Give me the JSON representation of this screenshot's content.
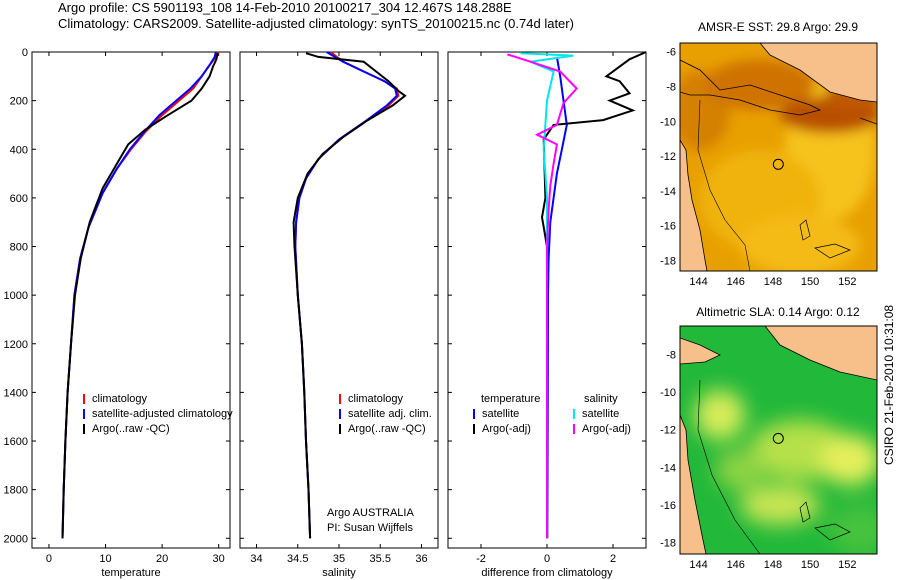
{
  "header": {
    "line1": "Argo profile: CS 5901193_108 14-Feb-2010 20100217_304 12.467S 148.288E",
    "line2": "Climatology: CARS2009. Satellite-adjusted climatology: synTS_20100215.nc (0.74d later)"
  },
  "credit": "CSIRO 21-Feb-2010 10:31:08",
  "colors": {
    "climatology": "#ff0000",
    "satellite": "#0000ff",
    "argo": "#000000",
    "salinity_sat": "#00e5ee",
    "salinity_argo": "#ff00ff"
  },
  "chart_data": [
    {
      "type": "line",
      "name": "temperature",
      "xlabel": "temperature",
      "ylabel": "",
      "xlim": [
        -3,
        32
      ],
      "ylim": [
        2040,
        0
      ],
      "xticks": [
        0,
        10,
        20,
        30
      ],
      "yticks": [
        0,
        200,
        400,
        600,
        800,
        1000,
        1200,
        1400,
        1600,
        1800,
        2000
      ],
      "legend": [
        "climatology",
        "satellite-adjusted climatology",
        "Argo(..raw -QC)"
      ],
      "series": [
        {
          "name": "climatology",
          "color": "#ff0000",
          "points": [
            [
              30,
              0
            ],
            [
              29.5,
              20
            ],
            [
              28.5,
              50
            ],
            [
              27,
              100
            ],
            [
              25.5,
              150
            ],
            [
              23,
              200
            ],
            [
              20,
              260
            ],
            [
              17,
              330
            ],
            [
              14.5,
              400
            ],
            [
              12,
              480
            ],
            [
              9.5,
              580
            ],
            [
              7,
              720
            ],
            [
              5.5,
              850
            ],
            [
              4.5,
              1000
            ],
            [
              3.9,
              1200
            ],
            [
              3.3,
              1400
            ],
            [
              2.9,
              1600
            ],
            [
              2.6,
              1800
            ],
            [
              2.4,
              2000
            ]
          ]
        },
        {
          "name": "satellite-adjusted climatology",
          "color": "#0000ff",
          "points": [
            [
              29.5,
              0
            ],
            [
              29.3,
              20
            ],
            [
              28.5,
              50
            ],
            [
              27,
              100
            ],
            [
              25,
              150
            ],
            [
              22.5,
              200
            ],
            [
              19.5,
              260
            ],
            [
              16.8,
              330
            ],
            [
              14.3,
              400
            ],
            [
              12,
              480
            ],
            [
              9.5,
              580
            ],
            [
              7,
              720
            ],
            [
              5.5,
              850
            ],
            [
              4.5,
              1000
            ],
            [
              3.9,
              1200
            ],
            [
              3.3,
              1400
            ],
            [
              2.9,
              1600
            ],
            [
              2.6,
              1800
            ],
            [
              2.4,
              2000
            ]
          ]
        },
        {
          "name": "Argo(..raw -QC)",
          "color": "#000000",
          "points": [
            [
              29.8,
              5
            ],
            [
              29.6,
              30
            ],
            [
              29,
              60
            ],
            [
              28.4,
              100
            ],
            [
              27,
              150
            ],
            [
              25.2,
              200
            ],
            [
              21,
              260
            ],
            [
              17,
              320
            ],
            [
              14,
              380
            ],
            [
              12,
              460
            ],
            [
              9.5,
              560
            ],
            [
              7.2,
              700
            ],
            [
              5.6,
              850
            ],
            [
              4.6,
              1000
            ],
            [
              3.9,
              1200
            ],
            [
              3.3,
              1400
            ],
            [
              2.9,
              1600
            ],
            [
              2.6,
              1800
            ],
            [
              2.4,
              2000
            ]
          ]
        }
      ]
    },
    {
      "type": "line",
      "name": "salinity",
      "xlabel": "salinity",
      "xlim": [
        33.8,
        36.2
      ],
      "ylim": [
        2040,
        0
      ],
      "xticks": [
        34,
        34.5,
        35,
        35.5,
        36
      ],
      "legend": [
        "climatology",
        "satellite adj. clim.",
        "Argo(..raw -QC)"
      ],
      "series": [
        {
          "name": "climatology",
          "color": "#ff0000",
          "points": [
            [
              34.9,
              0
            ],
            [
              35.05,
              40
            ],
            [
              35.3,
              80
            ],
            [
              35.55,
              120
            ],
            [
              35.7,
              150
            ],
            [
              35.72,
              180
            ],
            [
              35.6,
              220
            ],
            [
              35.3,
              290
            ],
            [
              35.0,
              360
            ],
            [
              34.75,
              440
            ],
            [
              34.6,
              520
            ],
            [
              34.52,
              600
            ],
            [
              34.48,
              700
            ],
            [
              34.47,
              800
            ],
            [
              34.5,
              1000
            ],
            [
              34.55,
              1200
            ],
            [
              34.58,
              1400
            ],
            [
              34.6,
              1600
            ],
            [
              34.63,
              1800
            ],
            [
              34.65,
              2000
            ]
          ]
        },
        {
          "name": "satellite adj. clim.",
          "color": "#0000ff",
          "points": [
            [
              34.85,
              0
            ],
            [
              35.05,
              40
            ],
            [
              35.3,
              80
            ],
            [
              35.55,
              120
            ],
            [
              35.68,
              150
            ],
            [
              35.7,
              180
            ],
            [
              35.58,
              220
            ],
            [
              35.3,
              290
            ],
            [
              35.0,
              360
            ],
            [
              34.75,
              440
            ],
            [
              34.6,
              520
            ],
            [
              34.52,
              600
            ],
            [
              34.48,
              700
            ],
            [
              34.47,
              800
            ],
            [
              34.5,
              1000
            ],
            [
              34.55,
              1200
            ],
            [
              34.58,
              1400
            ],
            [
              34.6,
              1600
            ],
            [
              34.63,
              1800
            ],
            [
              34.65,
              2000
            ]
          ]
        },
        {
          "name": "Argo(..raw -QC)",
          "color": "#000000",
          "points": [
            [
              34.6,
              5
            ],
            [
              34.75,
              20
            ],
            [
              35.3,
              40
            ],
            [
              35.45,
              80
            ],
            [
              35.6,
              120
            ],
            [
              35.72,
              160
            ],
            [
              35.8,
              180
            ],
            [
              35.65,
              220
            ],
            [
              35.35,
              280
            ],
            [
              35.05,
              350
            ],
            [
              34.8,
              420
            ],
            [
              34.62,
              500
            ],
            [
              34.5,
              600
            ],
            [
              34.45,
              700
            ],
            [
              34.46,
              800
            ],
            [
              34.5,
              1000
            ],
            [
              34.55,
              1200
            ],
            [
              34.58,
              1400
            ],
            [
              34.6,
              1600
            ],
            [
              34.63,
              1800
            ],
            [
              34.65,
              2000
            ]
          ]
        }
      ]
    },
    {
      "type": "line",
      "name": "difference",
      "xlabel": "difference from climatology",
      "xlim": [
        -3,
        3
      ],
      "ylim": [
        2040,
        0
      ],
      "xticks": [
        -2,
        0,
        2
      ],
      "legend_temperature_title": "temperature",
      "legend_salinity_title": "salinity",
      "legend_temperature": [
        "satellite",
        "Argo(-adj)"
      ],
      "legend_salinity": [
        "satellite",
        "Argo(-adj)"
      ],
      "series": [
        {
          "name": "temperature satellite",
          "color": "#0000ff",
          "points": [
            [
              0.3,
              20
            ],
            [
              0.4,
              100
            ],
            [
              0.5,
              200
            ],
            [
              0.6,
              300
            ],
            [
              0.45,
              400
            ],
            [
              0.3,
              500
            ],
            [
              0.2,
              600
            ],
            [
              0.1,
              700
            ],
            [
              0.05,
              850
            ],
            [
              0.03,
              1000
            ],
            [
              0.02,
              1500
            ],
            [
              0.01,
              2000
            ]
          ]
        },
        {
          "name": "temperature Argo(-adj)",
          "color": "#000000",
          "points": [
            [
              3,
              0
            ],
            [
              2.5,
              30
            ],
            [
              1.8,
              100
            ],
            [
              2.2,
              120
            ],
            [
              2.5,
              170
            ],
            [
              1.9,
              200
            ],
            [
              2.6,
              240
            ],
            [
              1.7,
              280
            ],
            [
              0.2,
              300
            ],
            [
              -0.1,
              360
            ],
            [
              -0.05,
              600
            ],
            [
              -0.15,
              680
            ],
            [
              -0.1,
              720
            ],
            [
              0,
              800
            ],
            [
              0,
              2000
            ]
          ]
        },
        {
          "name": "salinity satellite",
          "color": "#00e5ee",
          "points": [
            [
              -0.8,
              5
            ],
            [
              0.8,
              15
            ],
            [
              -0.5,
              40
            ],
            [
              0.2,
              80
            ],
            [
              0,
              200
            ],
            [
              -0.1,
              400
            ],
            [
              0,
              600
            ],
            [
              0,
              1000
            ],
            [
              0,
              2000
            ]
          ]
        },
        {
          "name": "salinity Argo(-adj)",
          "color": "#ff00ff",
          "points": [
            [
              -1.2,
              10
            ],
            [
              -0.5,
              40
            ],
            [
              0.4,
              80
            ],
            [
              0.9,
              150
            ],
            [
              0.5,
              210
            ],
            [
              0.3,
              300
            ],
            [
              -0.3,
              340
            ],
            [
              0.3,
              380
            ],
            [
              0.2,
              460
            ],
            [
              0.1,
              550
            ],
            [
              0.05,
              650
            ],
            [
              0,
              800
            ],
            [
              0,
              2000
            ]
          ]
        }
      ]
    },
    {
      "type": "heatmap",
      "name": "sst-map",
      "title": "AMSR-E SST: 29.8 Argo: 29.9",
      "xticks": [
        144,
        146,
        148,
        150,
        152
      ],
      "yticks": [
        -6,
        -8,
        -10,
        -12,
        -14,
        -16,
        -18
      ],
      "xlim": [
        143,
        153.6
      ],
      "ylim": [
        -18.6,
        -5.5
      ],
      "marker": [
        148.288,
        -12.467
      ]
    },
    {
      "type": "heatmap",
      "name": "sla-map",
      "title": "Altimetric SLA: 0.14 Argo: 0.12",
      "xticks": [
        144,
        146,
        148,
        150,
        152
      ],
      "yticks": [
        -8,
        -10,
        -12,
        -14,
        -16,
        -18
      ],
      "xlim": [
        143,
        153.6
      ],
      "ylim": [
        -18.6,
        -6.5
      ],
      "marker": [
        148.288,
        -12.467
      ]
    }
  ]
}
